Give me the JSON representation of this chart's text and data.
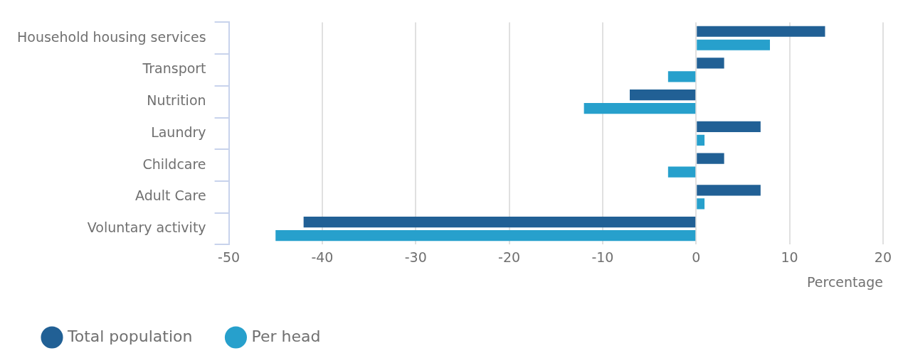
{
  "chart_data": {
    "type": "bar",
    "orientation": "horizontal",
    "categories": [
      "Household housing services",
      "Transport",
      "Nutrition",
      "Laundry",
      "Childcare",
      "Adult Care",
      "Voluntary activity"
    ],
    "series": [
      {
        "name": "Total population",
        "color": "#216095",
        "values": [
          13.8,
          3.0,
          -7.1,
          6.9,
          3.0,
          6.9,
          -42.0
        ]
      },
      {
        "name": "Per head",
        "color": "#27a0cc",
        "values": [
          7.9,
          -3.0,
          -12.0,
          0.9,
          -3.0,
          0.9,
          -45.0
        ]
      }
    ],
    "xlim": [
      -50,
      20
    ],
    "xticks": [
      -50,
      -40,
      -30,
      -20,
      -10,
      0,
      10,
      20
    ],
    "xlabel": "Percentage",
    "grid": "x",
    "legend": "bottom left"
  }
}
